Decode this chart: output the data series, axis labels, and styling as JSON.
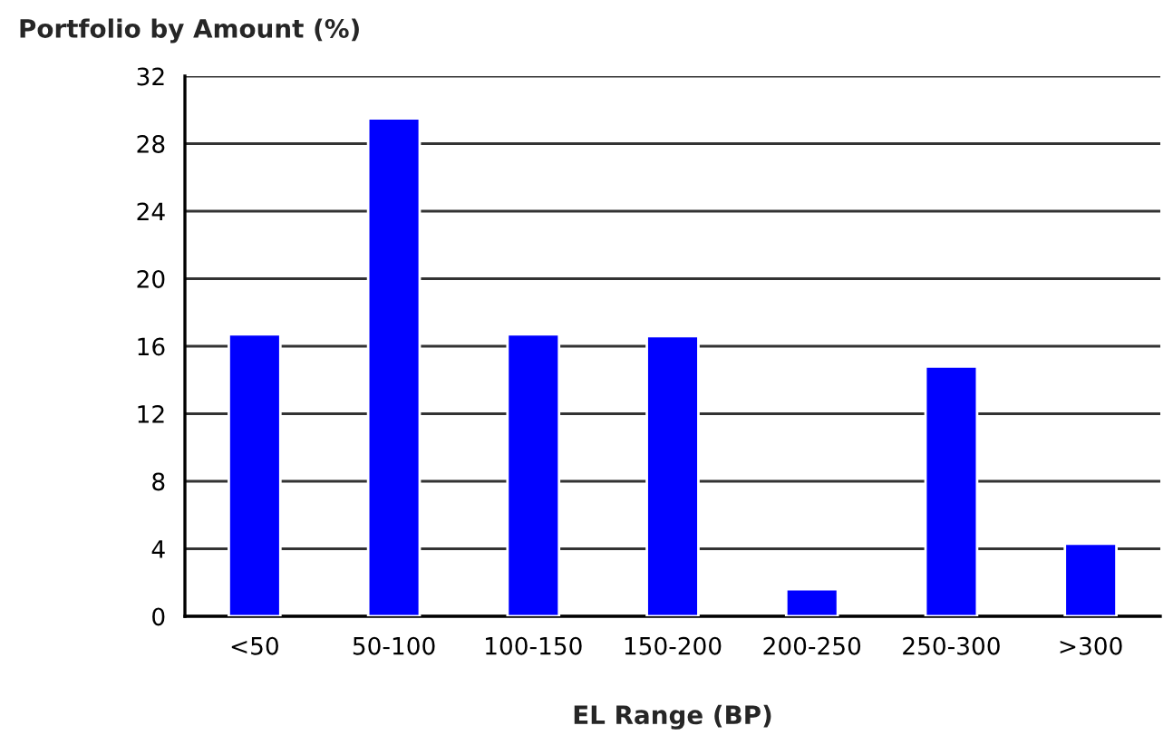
{
  "chart_data": {
    "type": "bar",
    "title": "Portfolio by Amount (%)",
    "xlabel": "EL Range (BP)",
    "categories": [
      "<50",
      "50-100",
      "100-150",
      "150-200",
      "200-250",
      "250-300",
      ">300"
    ],
    "values": [
      16.7,
      29.5,
      16.7,
      16.6,
      1.6,
      14.8,
      4.3
    ],
    "color": "#0000ff",
    "ylim": [
      0,
      32
    ],
    "yticks": [
      0,
      4,
      8,
      12,
      16,
      20,
      24,
      28,
      32
    ],
    "grid": "y",
    "legend": false
  }
}
